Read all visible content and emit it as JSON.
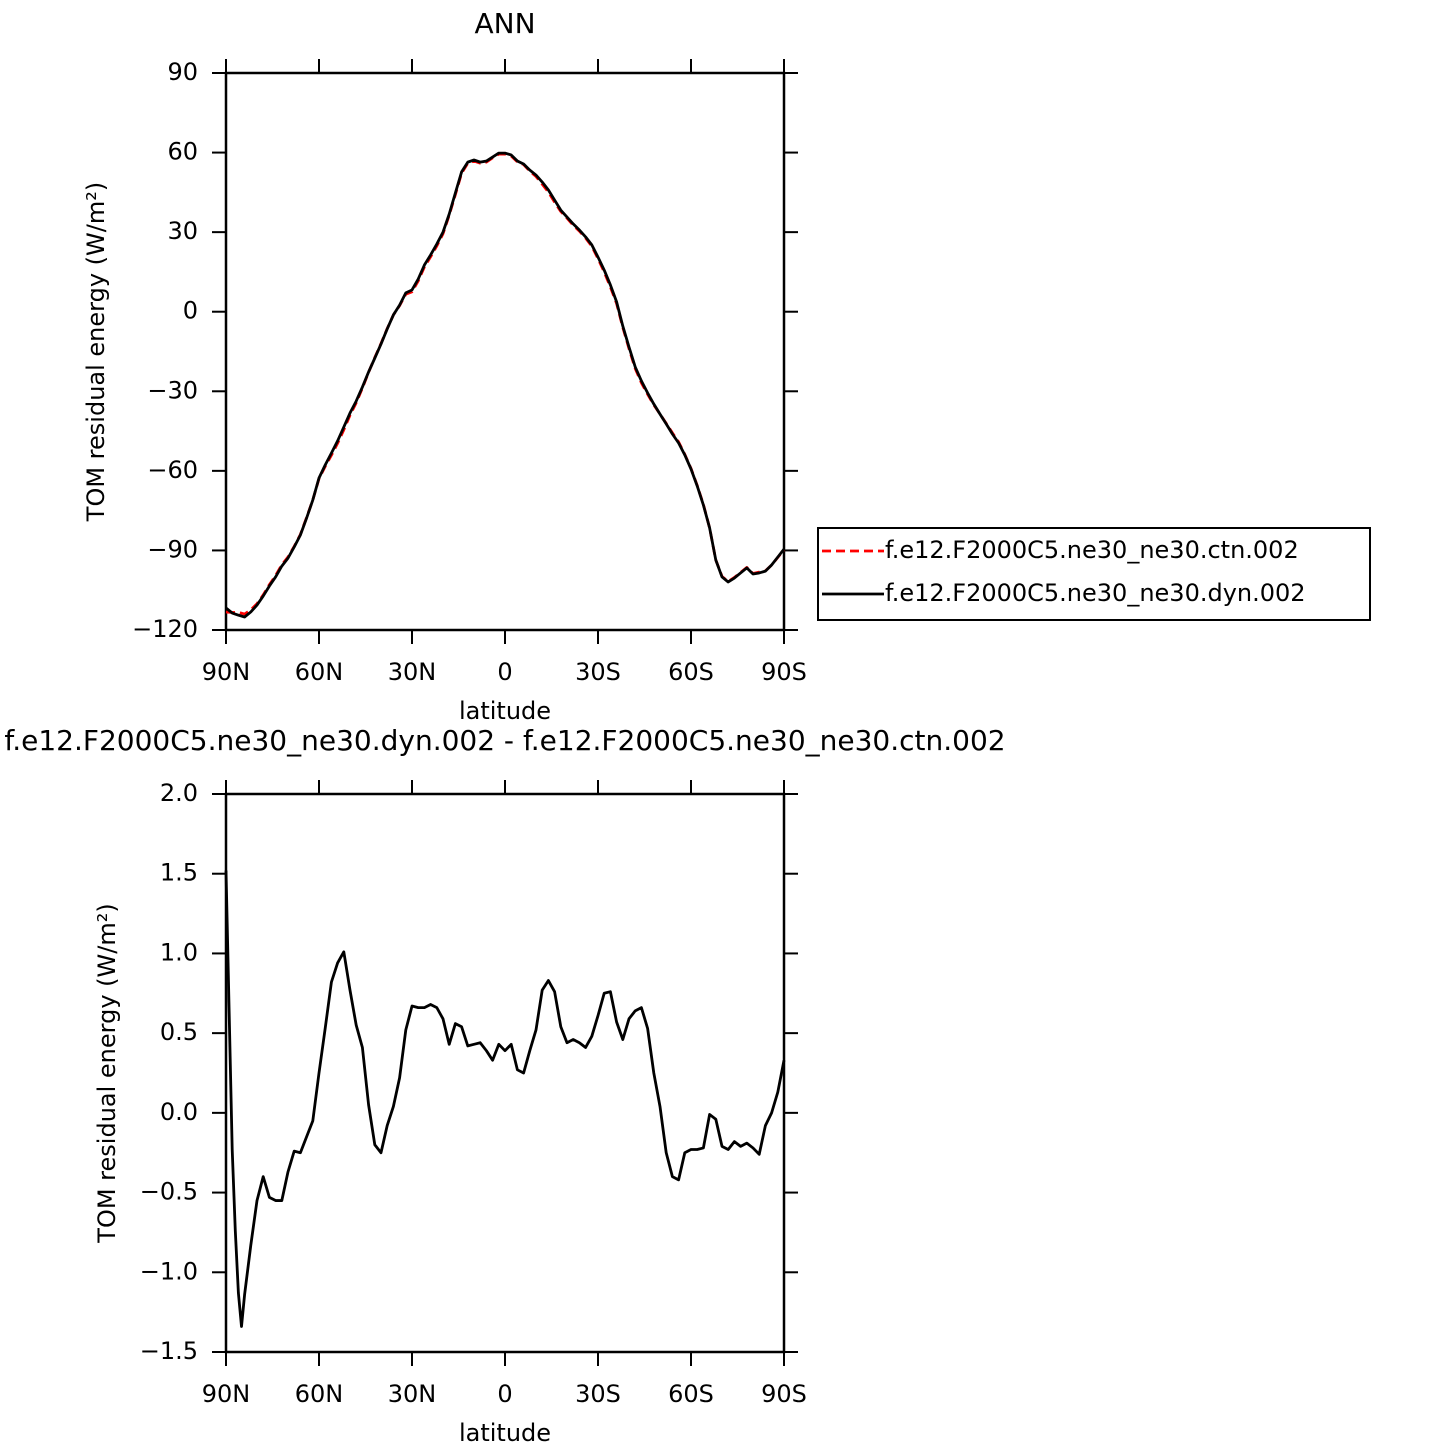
{
  "chart_data": [
    {
      "type": "line",
      "title": "ANN",
      "xlabel": "latitude",
      "ylabel": "TOM residual energy (W/m²)",
      "x": [
        90,
        88,
        86,
        84,
        82,
        80,
        78,
        76,
        74,
        72,
        70,
        68,
        66,
        64,
        62,
        60,
        58,
        56,
        54,
        52,
        50,
        48,
        46,
        44,
        42,
        40,
        38,
        36,
        34,
        32,
        30,
        28,
        26,
        24,
        22,
        20,
        18,
        16,
        14,
        12,
        10,
        8,
        6,
        4,
        2,
        0,
        -2,
        -4,
        -6,
        -8,
        -10,
        -12,
        -14,
        -16,
        -18,
        -20,
        -22,
        -24,
        -26,
        -28,
        -30,
        -32,
        -34,
        -36,
        -38,
        -40,
        -42,
        -44,
        -46,
        -48,
        -50,
        -52,
        -54,
        -56,
        -58,
        -60,
        -62,
        -64,
        -66,
        -68,
        -70,
        -72,
        -74,
        -76,
        -78,
        -80,
        -82,
        -84,
        -86,
        -88,
        -90
      ],
      "xlim": [
        90,
        -90
      ],
      "xticks": [
        {
          "value": 90,
          "label": "90N"
        },
        {
          "value": 60,
          "label": "60N"
        },
        {
          "value": 30,
          "label": "30N"
        },
        0,
        {
          "value": -30,
          "label": "30S"
        },
        {
          "value": -60,
          "label": "60S"
        },
        {
          "value": -90,
          "label": "90S"
        }
      ],
      "ylim": [
        -120,
        90
      ],
      "yticks": [
        {
          "value": -120,
          "label": "−120"
        },
        {
          "value": -90,
          "label": "−90"
        },
        {
          "value": -60,
          "label": "−60"
        },
        {
          "value": -30,
          "label": "−30"
        },
        0,
        30,
        60,
        90
      ],
      "legend": "right",
      "series": [
        {
          "name": "f.e12.F2000C5.ne30_ne30.ctn.002",
          "color": "#ff0000",
          "dash": "dashed",
          "values": [
            -113.2,
            -113.4,
            -113.3,
            -114.0,
            -112.4,
            -110.1,
            -106.8,
            -102.9,
            -99.5,
            -95.4,
            -92.5,
            -88.5,
            -84.0,
            -77.6,
            -71.0,
            -62.9,
            -58.3,
            -54.1,
            -49.6,
            -44.5,
            -39.0,
            -34.3,
            -28.8,
            -22.8,
            -17.3,
            -12.0,
            -6.4,
            -1.2,
            2.3,
            6.6,
            7.5,
            11.6,
            16.9,
            20.7,
            24.8,
            29.4,
            36.4,
            44.2,
            52.2,
            56.0,
            56.8,
            56.0,
            56.4,
            58.0,
            59.4,
            59.4,
            58.7,
            56.5,
            55.5,
            53.0,
            51.0,
            48.1,
            45.1,
            41.3,
            37.8,
            35.3,
            32.6,
            30.4,
            27.8,
            24.7,
            20.0,
            15.0,
            9.3,
            3.1,
            -5.9,
            -13.9,
            -21.4,
            -26.8,
            -31.1,
            -35.1,
            -38.6,
            -42.1,
            -45.7,
            -49.1,
            -53.8,
            -59.1,
            -65.5,
            -72.7,
            -81.5,
            -93.6,
            -99.8,
            -101.7,
            -100.2,
            -98.3,
            -96.4,
            -98.7,
            -98.2,
            -97.7,
            -95.5,
            -92.6,
            -89.8
          ]
        },
        {
          "name": "f.e12.F2000C5.ne30_ne30.dyn.002",
          "color": "#000000",
          "dash": "solid",
          "values": [
            -111.7,
            -113.6,
            -114.4,
            -115.1,
            -113.2,
            -110.6,
            -107.2,
            -103.4,
            -100,
            -95.9,
            -92.9,
            -88.7,
            -84.2,
            -77.8,
            -71,
            -62.7,
            -57.8,
            -53.3,
            -48.7,
            -43.5,
            -38.2,
            -33.7,
            -28.4,
            -22.7,
            -17.5,
            -12.2,
            -6.5,
            -1.2,
            2.5,
            7.1,
            8.2,
            12.3,
            17.6,
            21.4,
            25.5,
            30,
            36.8,
            44.8,
            52.7,
            56.4,
            57.2,
            56.4,
            56.8,
            58.3,
            59.8,
            59.8,
            59.1,
            56.8,
            55.7,
            53.4,
            51.5,
            48.9,
            45.9,
            42.1,
            38.3,
            35.7,
            33.1,
            30.8,
            28.2,
            25.2,
            20.6,
            15.7,
            10.1,
            3.7,
            -5.4,
            -13.3,
            -20.8,
            -26.1,
            -30.6,
            -34.8,
            -38.6,
            -42.3,
            -46.1,
            -49.5,
            -54,
            -59.3,
            -65.7,
            -72.9,
            -81.5,
            -93.6,
            -100,
            -101.9,
            -100.4,
            -98.5,
            -96.6,
            -98.9,
            -98.5,
            -97.8,
            -95.5,
            -92.5,
            -89.5
          ]
        }
      ]
    },
    {
      "type": "line",
      "title": "f.e12.F2000C5.ne30_ne30.dyn.002 - f.e12.F2000C5.ne30_ne30.ctn.002",
      "xlabel": "latitude",
      "ylabel": "TOM residual energy (W/m²)",
      "x": [
        90,
        88,
        87,
        86,
        85,
        84,
        82,
        80,
        78,
        76,
        74,
        72,
        70,
        68,
        66,
        64,
        62,
        60,
        58,
        56,
        54,
        52,
        50,
        48,
        46,
        44,
        42,
        40,
        38,
        36,
        34,
        32,
        30,
        28,
        26,
        24,
        22,
        20,
        18,
        16,
        14,
        12,
        10,
        8,
        6,
        4,
        2,
        0,
        -2,
        -4,
        -6,
        -8,
        -10,
        -12,
        -14,
        -16,
        -18,
        -20,
        -22,
        -24,
        -26,
        -28,
        -30,
        -32,
        -34,
        -36,
        -38,
        -40,
        -42,
        -44,
        -46,
        -48,
        -50,
        -52,
        -54,
        -56,
        -58,
        -60,
        -62,
        -64,
        -66,
        -68,
        -70,
        -72,
        -74,
        -76,
        -78,
        -80,
        -82,
        -84,
        -86,
        -88,
        -90
      ],
      "xlim": [
        90,
        -90
      ],
      "xticks": [
        {
          "value": 90,
          "label": "90N"
        },
        {
          "value": 60,
          "label": "60N"
        },
        {
          "value": 30,
          "label": "30N"
        },
        0,
        {
          "value": -30,
          "label": "30S"
        },
        {
          "value": -60,
          "label": "60S"
        },
        {
          "value": -90,
          "label": "90S"
        }
      ],
      "ylim": [
        -1.5,
        2
      ],
      "yticks": [
        {
          "value": -1.5,
          "label": "−1.5"
        },
        {
          "value": -1,
          "label": "−1.0"
        },
        {
          "value": -0.5,
          "label": "−0.5"
        },
        {
          "value": 0,
          "label": "0.0"
        },
        0.5,
        {
          "value": 1,
          "label": "1.0"
        },
        1.5,
        {
          "value": 2,
          "label": "2.0"
        }
      ],
      "series": [
        {
          "color": "#000000",
          "dash": "solid",
          "values": [
            1.52,
            -0.23,
            -0.74,
            -1.13,
            -1.34,
            -1.14,
            -0.83,
            -0.55,
            -0.4,
            -0.53,
            -0.55,
            -0.55,
            -0.37,
            -0.24,
            -0.25,
            -0.15,
            -0.05,
            0.25,
            0.53,
            0.82,
            0.94,
            1.01,
            0.77,
            0.55,
            0.41,
            0.05,
            -0.2,
            -0.25,
            -0.08,
            0.04,
            0.22,
            0.52,
            0.67,
            0.66,
            0.66,
            0.68,
            0.66,
            0.59,
            0.43,
            0.56,
            0.54,
            0.42,
            0.43,
            0.44,
            0.39,
            0.33,
            0.43,
            0.39,
            0.43,
            0.27,
            0.25,
            0.39,
            0.52,
            0.77,
            0.83,
            0.76,
            0.54,
            0.44,
            0.46,
            0.44,
            0.41,
            0.48,
            0.61,
            0.75,
            0.76,
            0.57,
            0.46,
            0.59,
            0.64,
            0.66,
            0.53,
            0.25,
            0.04,
            -0.25,
            -0.4,
            -0.42,
            -0.25,
            -0.23,
            -0.23,
            -0.22,
            -0.01,
            -0.04,
            -0.21,
            -0.23,
            -0.18,
            -0.21,
            -0.19,
            -0.22,
            -0.26,
            -0.08,
            0.0,
            0.13,
            0.33
          ]
        }
      ]
    }
  ]
}
